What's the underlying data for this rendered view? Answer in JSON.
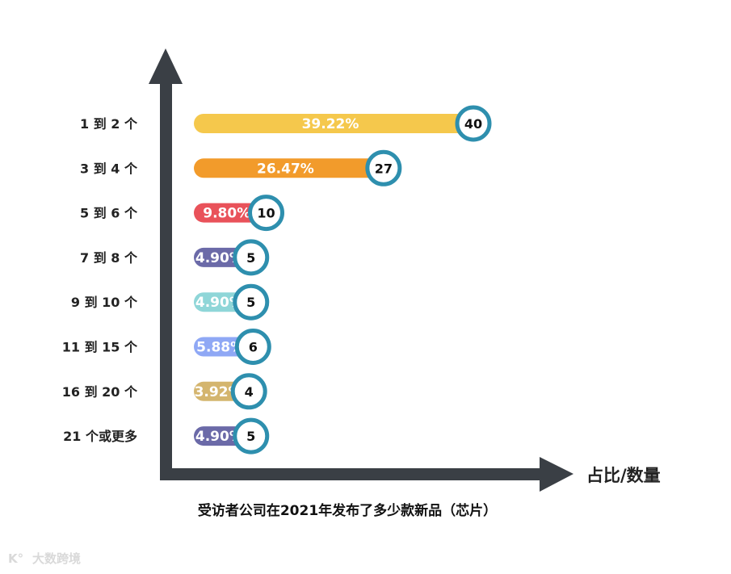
{
  "chart_data": {
    "type": "bar",
    "orientation": "horizontal",
    "categories": [
      "1 到 2 个",
      "3 到 4 个",
      "5 到 6 个",
      "7 到 8 个",
      "9 到 10 个",
      "11 到 15 个",
      "16 到 20 个",
      "21 个或更多"
    ],
    "series": [
      {
        "values": [
          40,
          27,
          10,
          5,
          5,
          6,
          4,
          5
        ]
      }
    ],
    "percent_labels": [
      "39.22%",
      "26.47%",
      "9.80%",
      "4.90%",
      "4.90%",
      "5.88%",
      "3.92%",
      "4.90%"
    ],
    "count_labels": [
      "40",
      "27",
      "10",
      "5",
      "5",
      "6",
      "4",
      "5"
    ],
    "bar_colors": [
      "#f5c84c",
      "#f29b2b",
      "#e9525a",
      "#6b6aa8",
      "#8fd6d8",
      "#8fa8f5",
      "#d4b56e",
      "#6b6aa8"
    ],
    "badge_ring_color": "#2e8fae",
    "axis_color": "#3a3f45",
    "xlabel": "占比/数量",
    "caption": "受访者公司在2021年发布了多少款新品（芯片）",
    "grid": false
  },
  "watermark": {
    "text": "大数跨境"
  }
}
